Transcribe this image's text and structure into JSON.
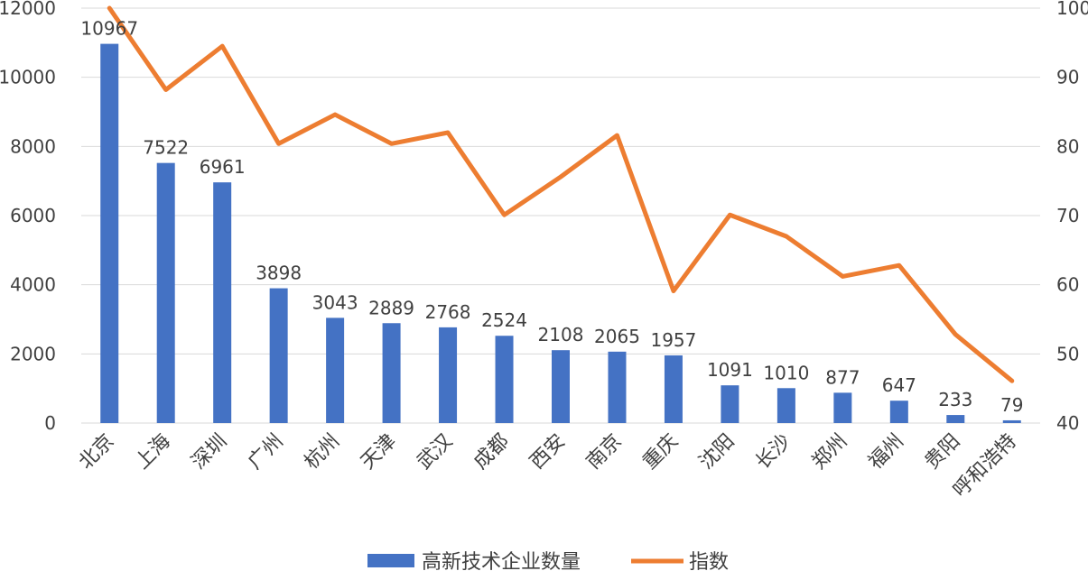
{
  "chart_data": {
    "type": "bar",
    "categories": [
      "北京",
      "上海",
      "深圳",
      "广州",
      "杭州",
      "天津",
      "武汉",
      "成都",
      "西安",
      "南京",
      "重庆",
      "沈阳",
      "长沙",
      "郑州",
      "福州",
      "贵阳",
      "呼和浩特"
    ],
    "series": [
      {
        "name": "高新技术企业数量",
        "type": "bar",
        "axis": "left",
        "color": "#4472C4",
        "values": [
          10967,
          7522,
          6961,
          3898,
          3043,
          2889,
          2768,
          2524,
          2108,
          2065,
          1957,
          1091,
          1010,
          877,
          647,
          233,
          79
        ],
        "data_labels": [
          "10967",
          "7522",
          "6961",
          "3898",
          "3043",
          "2889",
          "2768",
          "2524",
          "2108",
          "2065",
          "1957",
          "1091",
          "1010",
          "877",
          "647",
          "233",
          "79"
        ]
      },
      {
        "name": "指数",
        "type": "line",
        "axis": "right",
        "color": "#ED7D31",
        "values": [
          100,
          88.2,
          94.5,
          80.4,
          84.6,
          80.4,
          82,
          70.1,
          75.6,
          81.6,
          59.1,
          70.1,
          67,
          61.2,
          62.8,
          52.8,
          46.1
        ]
      }
    ],
    "y_left": {
      "min": 0,
      "max": 12000,
      "ticks": [
        "0",
        "2000",
        "4000",
        "6000",
        "8000",
        "10000",
        "12000"
      ]
    },
    "y_right": {
      "min": 40,
      "max": 100,
      "ticks": [
        "40",
        "50",
        "60",
        "70",
        "80",
        "90",
        "100"
      ]
    },
    "grid": true,
    "legend_position": "bottom"
  }
}
